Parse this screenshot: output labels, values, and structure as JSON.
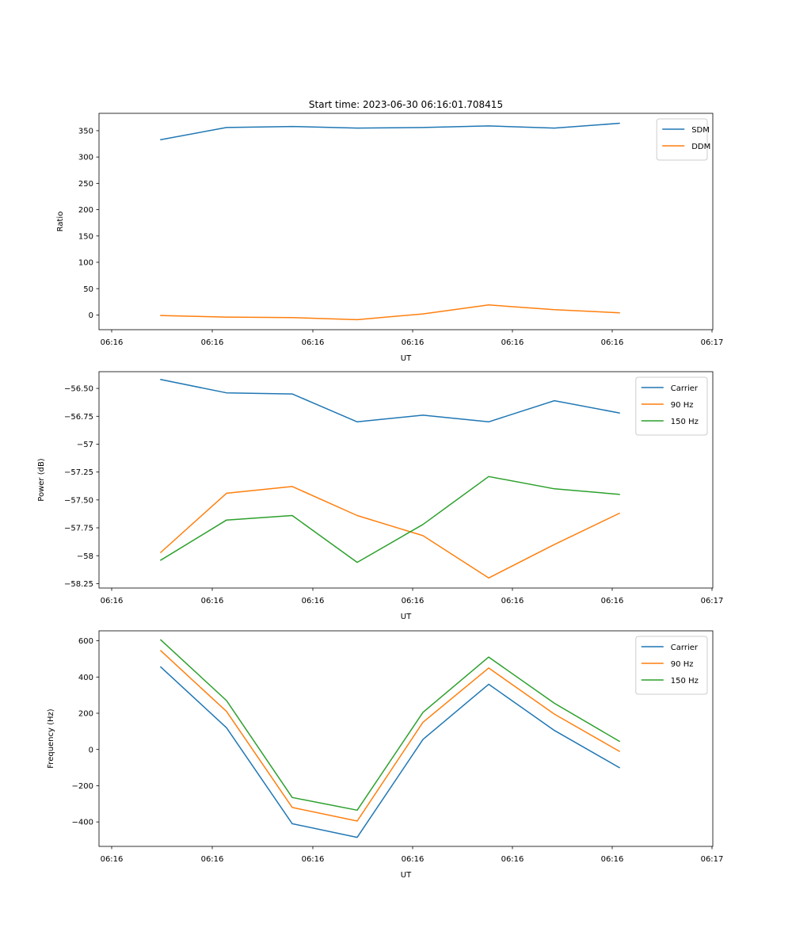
{
  "figure": {
    "title": "Start time: 2023-06-30 06:16:01.708415",
    "colors": {
      "series_1": "#1f77b4",
      "series_2": "#ff7f0e",
      "series_3": "#2ca02c"
    }
  },
  "chart_data": [
    {
      "type": "line",
      "title": "Start time: 2023-06-30 06:16:01.708415",
      "xlabel": "UT",
      "ylabel": "Ratio",
      "x": [
        1,
        2,
        3,
        4,
        5,
        6,
        7,
        8
      ],
      "x_tick_labels": [
        "06:16",
        "06:16",
        "06:16",
        "06:16",
        "06:16",
        "06:16",
        "06:17"
      ],
      "ylim": [
        -28,
        383
      ],
      "y_ticks": [
        0,
        50,
        100,
        150,
        200,
        250,
        300,
        350
      ],
      "legend": "top-right",
      "grid": false,
      "series": [
        {
          "name": "SDM",
          "color": "#1f77b4",
          "values": [
            333,
            356,
            358,
            355,
            356,
            359,
            355,
            364
          ]
        },
        {
          "name": "DDM",
          "color": "#ff7f0e",
          "values": [
            -1,
            -4,
            -5,
            -9,
            2,
            19,
            10,
            4
          ]
        }
      ]
    },
    {
      "type": "line",
      "title": "",
      "xlabel": "UT",
      "ylabel": "Power (dB)",
      "x": [
        1,
        2,
        3,
        4,
        5,
        6,
        7,
        8
      ],
      "x_tick_labels": [
        "06:16",
        "06:16",
        "06:16",
        "06:16",
        "06:16",
        "06:16",
        "06:17"
      ],
      "ylim": [
        -58.29,
        -56.35
      ],
      "y_ticks": [
        -58.25,
        -58.0,
        -57.75,
        -57.5,
        -57.25,
        -57.0,
        -56.75,
        -56.5
      ],
      "legend": "top-right",
      "grid": false,
      "series": [
        {
          "name": "Carrier",
          "color": "#1f77b4",
          "values": [
            -56.42,
            -56.54,
            -56.55,
            -56.8,
            -56.74,
            -56.8,
            -56.61,
            -56.72
          ]
        },
        {
          "name": "90 Hz",
          "color": "#ff7f0e",
          "values": [
            -57.97,
            -57.44,
            -57.38,
            -57.64,
            -57.82,
            -58.2,
            -57.9,
            -57.62
          ]
        },
        {
          "name": "150 Hz",
          "color": "#2ca02c",
          "values": [
            -58.04,
            -57.68,
            -57.64,
            -58.06,
            -57.72,
            -57.29,
            -57.4,
            -57.45
          ]
        }
      ]
    },
    {
      "type": "line",
      "title": "",
      "xlabel": "UT",
      "ylabel": "Frequency (Hz)",
      "x": [
        1,
        2,
        3,
        4,
        5,
        6,
        7,
        8
      ],
      "x_tick_labels": [
        "06:16",
        "06:16",
        "06:16",
        "06:16",
        "06:16",
        "06:16",
        "06:17"
      ],
      "ylim": [
        -535,
        655
      ],
      "y_ticks": [
        -400,
        -200,
        0,
        200,
        400,
        600
      ],
      "legend": "top-right",
      "grid": false,
      "series": [
        {
          "name": "Carrier",
          "color": "#1f77b4",
          "values": [
            455,
            120,
            -410,
            -485,
            55,
            360,
            105,
            -100
          ]
        },
        {
          "name": "90 Hz",
          "color": "#ff7f0e",
          "values": [
            545,
            210,
            -320,
            -395,
            150,
            450,
            195,
            -10
          ]
        },
        {
          "name": "150 Hz",
          "color": "#2ca02c",
          "values": [
            605,
            270,
            -265,
            -335,
            205,
            510,
            255,
            45
          ]
        }
      ]
    }
  ]
}
